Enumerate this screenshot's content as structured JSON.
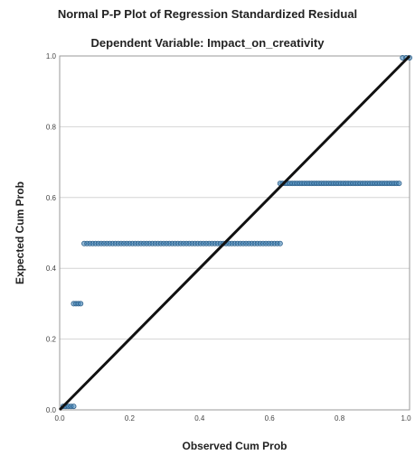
{
  "chart_data": {
    "type": "scatter",
    "title": "Normal P-P Plot of Regression Standardized Residual",
    "subtitle": "Dependent Variable: Impact_on_creativity",
    "xlabel": "Observed Cum Prob",
    "ylabel": "Expected Cum Prob",
    "xlim": [
      0,
      1
    ],
    "ylim": [
      0,
      1
    ],
    "xticks": [
      "0.0",
      "0.2",
      "0.4",
      "0.6",
      "0.8",
      "1.0"
    ],
    "yticks": [
      "0.0",
      "0.2",
      "0.4",
      "0.6",
      "0.8",
      "1.0"
    ],
    "grid": "horizontal",
    "reference_line": {
      "from": [
        0,
        0
      ],
      "to": [
        1,
        1
      ]
    },
    "point_color": "#3b7fb5",
    "line_color": "#111111",
    "clusters": [
      {
        "y": 0.01,
        "x_start": 0.01,
        "x_end": 0.04,
        "count": 5
      },
      {
        "y": 0.3,
        "x_start": 0.04,
        "x_end": 0.06,
        "count": 4
      },
      {
        "y": 0.47,
        "x_start": 0.07,
        "x_end": 0.63,
        "count": 70
      },
      {
        "y": 0.64,
        "x_start": 0.63,
        "x_end": 0.97,
        "count": 50
      },
      {
        "y": 0.995,
        "x_start": 0.98,
        "x_end": 1.0,
        "count": 3
      }
    ]
  }
}
